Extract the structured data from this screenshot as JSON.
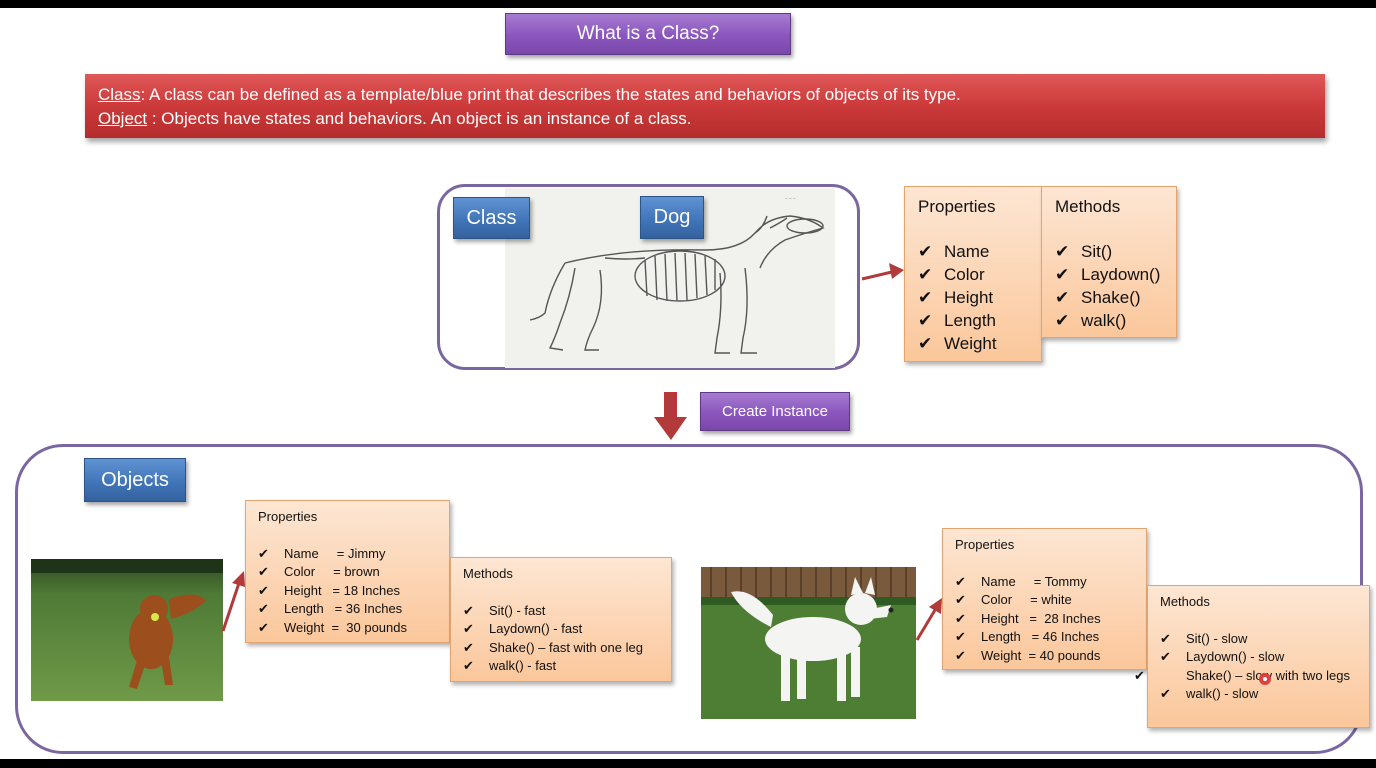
{
  "title": "What is a Class?",
  "definitions": {
    "class_term": "Class",
    "class_text": ":  A class can be defined as a template/blue print that describes the states and behaviors of objects of its type.",
    "object_term": "Object",
    "object_text": " : Objects have states and behaviors. An object is an instance of a class."
  },
  "class_section": {
    "class_label": "Class",
    "dog_label": "Dog",
    "image_icon": "dog-skeleton-drawing",
    "properties": {
      "header": "Properties",
      "items": [
        "Name",
        "Color",
        "Height",
        "Length",
        "Weight"
      ]
    },
    "methods": {
      "header": "Methods",
      "items": [
        "Sit()",
        "Laydown()",
        "Shake()",
        "walk()"
      ]
    }
  },
  "create_instance_label": "Create Instance",
  "objects_section": {
    "label": "Objects",
    "jimmy": {
      "image_icon": "golden-retriever-photo",
      "properties": {
        "header": "Properties",
        "items": [
          "Name     = Jimmy",
          "Color     = brown",
          "Height   = 18 Inches",
          "Length   = 36 Inches",
          "Weight  =  30 pounds"
        ]
      },
      "methods": {
        "header": "Methods",
        "items": [
          "Sit() - fast",
          "Laydown() - fast",
          "Shake() – fast with one leg",
          "walk() - fast"
        ]
      }
    },
    "tommy": {
      "image_icon": "white-dog-photo",
      "properties": {
        "header": "Properties",
        "items": [
          "Name     = Tommy",
          "Color     = white",
          "Height   =  28 Inches",
          "Length   = 46 Inches",
          "Weight  = 40 pounds"
        ]
      },
      "methods": {
        "header": "Methods",
        "items": [
          "Sit() - slow",
          "Laydown() - slow",
          "Shake() – slow with two legs",
          "walk() - slow"
        ]
      }
    }
  },
  "colors": {
    "title_purple": "#8a55bd",
    "definition_red": "#cc3a3a",
    "label_blue": "#3f73b7",
    "box_orange": "#fbc79b",
    "frame_purple": "#7b67a0",
    "arrow_red": "#b23a3a"
  },
  "check_glyph": "✔"
}
